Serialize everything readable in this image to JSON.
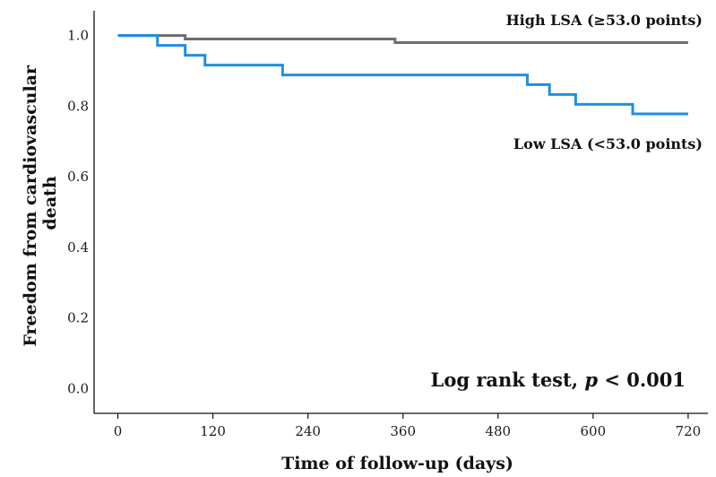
{
  "chart_data": {
    "type": "line",
    "step": true,
    "xlabel": "Time of follow-up (days)",
    "ylabel_lines": [
      "Freedom from cardiovascular",
      "death"
    ],
    "xlim": [
      -30,
      745
    ],
    "ylim": [
      -0.07,
      1.07
    ],
    "xticks": [
      0,
      120,
      240,
      360,
      480,
      600,
      720
    ],
    "yticks": [
      0.0,
      0.2,
      0.4,
      0.6,
      0.8,
      1.0
    ],
    "ytick_labels": [
      "0.0",
      "0.2",
      "0.4",
      "0.6",
      "0.8",
      "1.0"
    ],
    "grid": false,
    "series": [
      {
        "name": "High LSA (≥53.0 points)",
        "color": "#6d6d6d",
        "x": [
          0,
          85,
          350,
          720
        ],
        "y": [
          1.0,
          0.99,
          0.98,
          0.98
        ]
      },
      {
        "name": "Low LSA (<53.0 points)",
        "color": "#1f8fe0",
        "x": [
          0,
          50,
          85,
          110,
          208,
          517,
          545,
          578,
          650,
          720
        ],
        "y": [
          1.0,
          0.972,
          0.944,
          0.916,
          0.888,
          0.861,
          0.833,
          0.805,
          0.778,
          0.778
        ]
      }
    ],
    "annotation": {
      "prefix": "Log rank test, ",
      "italic": "p",
      "suffix": " < 0.001"
    }
  }
}
